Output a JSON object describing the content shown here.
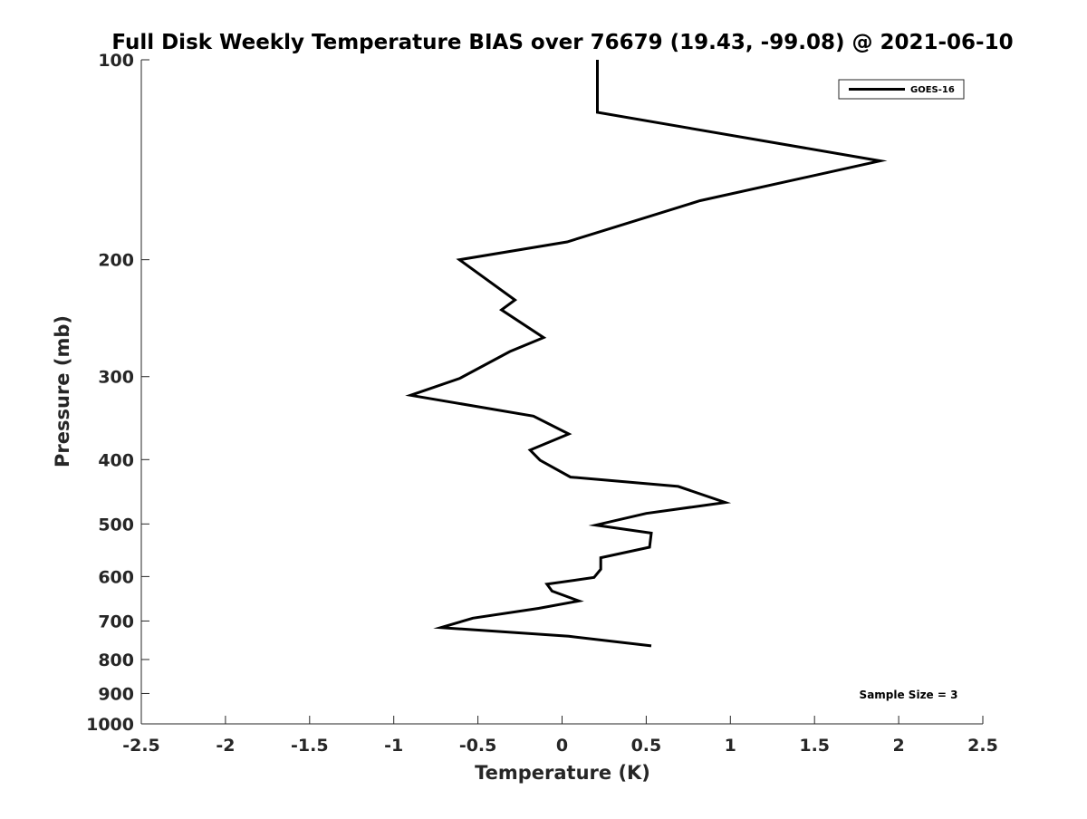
{
  "chart_data": {
    "type": "line",
    "title": "Full Disk Weekly Temperature BIAS over 76679 (19.43, -99.08) @ 2021-06-10",
    "xlabel": "Temperature (K)",
    "ylabel": "Pressure (mb)",
    "xlim": [
      -2.5,
      2.5
    ],
    "ylim": [
      100,
      1000
    ],
    "y_scale": "log",
    "y_reversed": true,
    "grid": false,
    "x_ticks": [
      -2.5,
      -2,
      -1.5,
      -1,
      -0.5,
      0,
      0.5,
      1,
      1.5,
      2,
      2.5
    ],
    "x_tick_labels": [
      "-2.5",
      "-2",
      "-1.5",
      "-1",
      "-0.5",
      "0",
      "0.5",
      "1",
      "1.5",
      "2",
      "2.5"
    ],
    "y_ticks": [
      100,
      200,
      300,
      400,
      500,
      600,
      700,
      800,
      900,
      1000
    ],
    "y_tick_labels": [
      "100",
      "200",
      "300",
      "400",
      "500",
      "600",
      "700",
      "800",
      "900",
      "1000"
    ],
    "legend": {
      "placement": "top-right",
      "entries": [
        "GOES-16"
      ]
    },
    "annotation": "Sample Size = 3",
    "series": [
      {
        "name": "GOES-16",
        "color": "#000000",
        "points": [
          {
            "x": 0.21,
            "p": 100
          },
          {
            "x": 0.21,
            "p": 120
          },
          {
            "x": 1.89,
            "p": 142
          },
          {
            "x": 0.82,
            "p": 163
          },
          {
            "x": 0.03,
            "p": 188
          },
          {
            "x": -0.61,
            "p": 200
          },
          {
            "x": -0.28,
            "p": 230
          },
          {
            "x": -0.36,
            "p": 238
          },
          {
            "x": -0.11,
            "p": 262
          },
          {
            "x": -0.31,
            "p": 275
          },
          {
            "x": -0.61,
            "p": 302
          },
          {
            "x": -0.9,
            "p": 320
          },
          {
            "x": -0.17,
            "p": 344
          },
          {
            "x": 0.04,
            "p": 366
          },
          {
            "x": -0.19,
            "p": 387
          },
          {
            "x": -0.13,
            "p": 401
          },
          {
            "x": 0.05,
            "p": 425
          },
          {
            "x": 0.69,
            "p": 439
          },
          {
            "x": 0.97,
            "p": 464
          },
          {
            "x": 0.5,
            "p": 482
          },
          {
            "x": 0.2,
            "p": 502
          },
          {
            "x": 0.53,
            "p": 516
          },
          {
            "x": 0.52,
            "p": 542
          },
          {
            "x": 0.23,
            "p": 562
          },
          {
            "x": 0.23,
            "p": 585
          },
          {
            "x": 0.19,
            "p": 602
          },
          {
            "x": -0.09,
            "p": 616
          },
          {
            "x": -0.06,
            "p": 631
          },
          {
            "x": 0.1,
            "p": 653
          },
          {
            "x": -0.14,
            "p": 670
          },
          {
            "x": -0.53,
            "p": 693
          },
          {
            "x": -0.72,
            "p": 716
          },
          {
            "x": 0.04,
            "p": 738
          },
          {
            "x": 0.53,
            "p": 763
          }
        ]
      }
    ]
  }
}
